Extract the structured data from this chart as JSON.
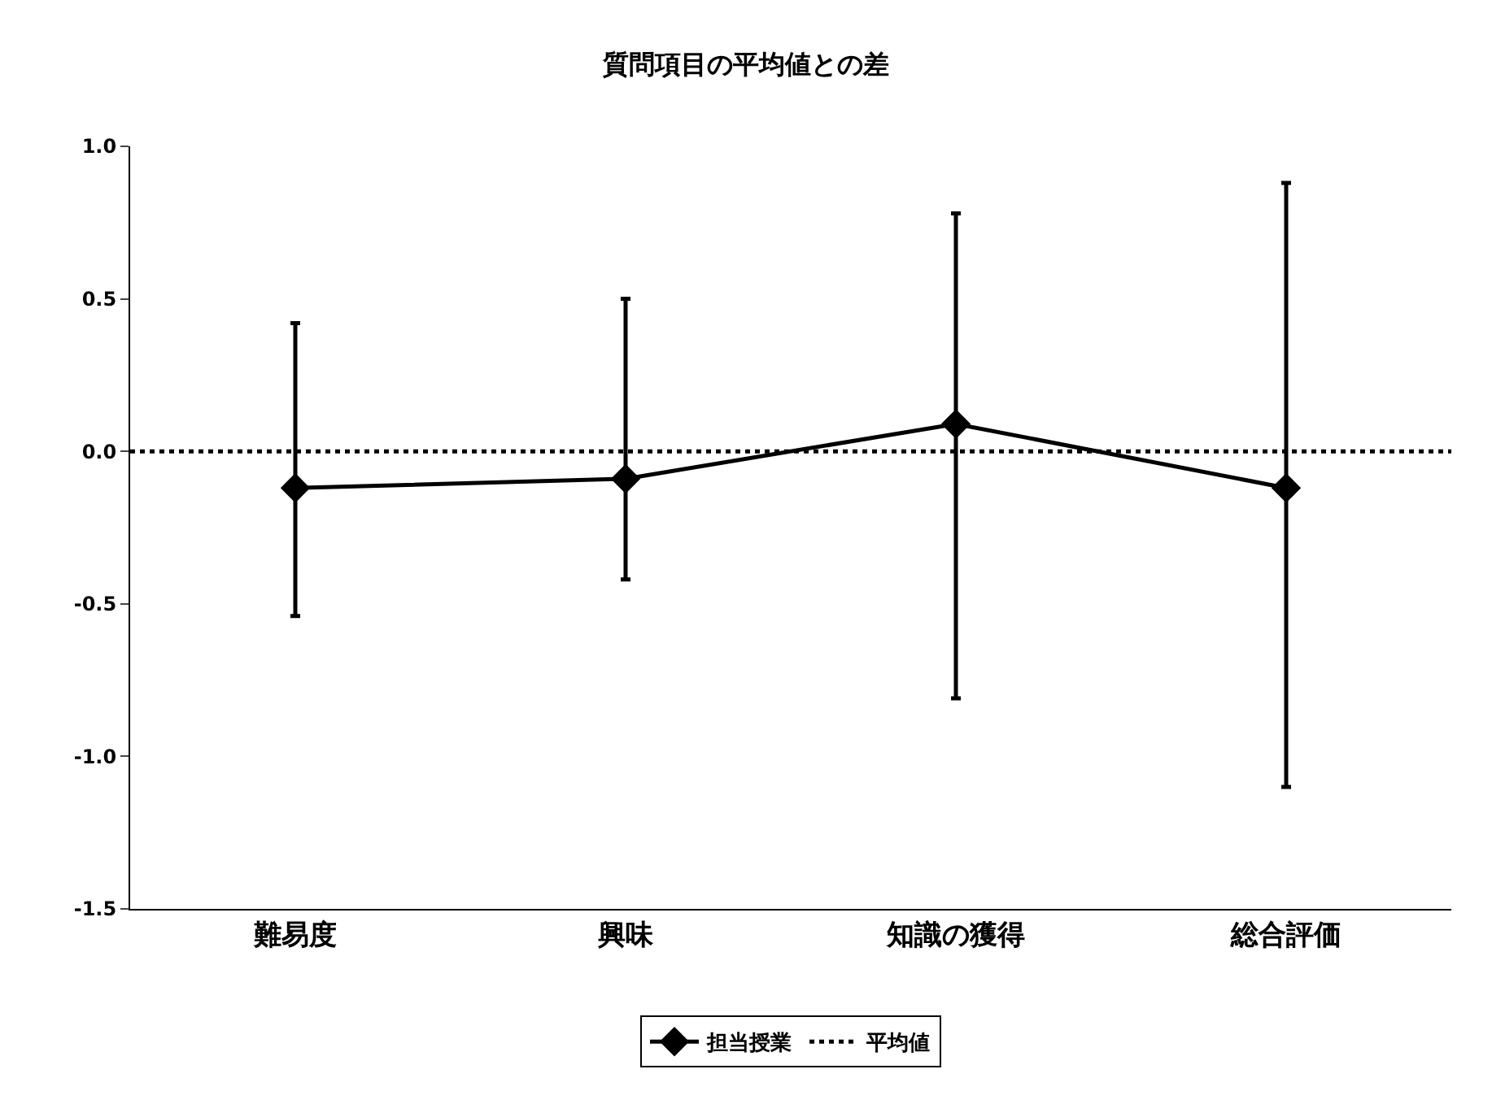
{
  "chart_data": {
    "type": "line",
    "title": "質問項目の平均値との差",
    "categories": [
      "難易度",
      "興味",
      "知識の獲得",
      "総合評価"
    ],
    "series": [
      {
        "name": "担当授業",
        "color": "#000000",
        "values": [
          -0.12,
          -0.09,
          0.09,
          -0.12
        ],
        "errors": [
          [
            -0.54,
            0.42
          ],
          [
            -0.42,
            0.5
          ],
          [
            -0.81,
            0.78
          ],
          [
            -1.1,
            0.88
          ]
        ]
      }
    ],
    "ylim": [
      -1.5,
      1.0
    ],
    "yticks": [
      {
        "value": -1.5,
        "label": "-1.5"
      },
      {
        "value": -1,
        "label": "-1.0"
      },
      {
        "value": -0.5,
        "label": "-0.5"
      },
      {
        "value": 0,
        "label": "0.0"
      },
      {
        "value": 0.5,
        "label": "0.5"
      },
      {
        "value": 1,
        "label": "1.0"
      }
    ],
    "ref_lines": [
      {
        "axis": "y",
        "value": 0,
        "label": "平均値",
        "color": "#000000",
        "line_style": "dotted"
      }
    ],
    "marker": "diamond",
    "line_style": "solid",
    "grid": false,
    "legend": "bottom"
  }
}
